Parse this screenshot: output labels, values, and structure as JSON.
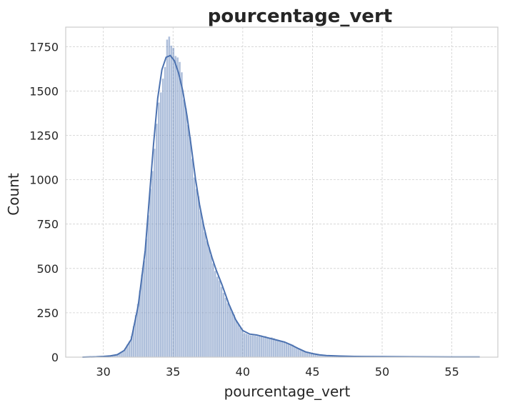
{
  "chart_data": {
    "type": "bar",
    "title": "pourcentage_vert",
    "xlabel": "pourcentage_vert",
    "ylabel": "Count",
    "xlim": [
      27.3,
      58.3
    ],
    "ylim": [
      0,
      1860
    ],
    "xticks": [
      30,
      35,
      40,
      45,
      50,
      55
    ],
    "yticks": [
      0,
      250,
      500,
      750,
      1000,
      1250,
      1500,
      1750
    ],
    "grid": true,
    "legend": "none",
    "bar_color": "#4c72b0",
    "kde_color": "#4c72b0",
    "bin_width": 0.15,
    "histogram": {
      "x_start": 30.0,
      "x_end": 57.0,
      "points": [
        [
          28.5,
          0
        ],
        [
          29.5,
          2
        ],
        [
          30.0,
          4
        ],
        [
          30.5,
          8
        ],
        [
          31.0,
          15
        ],
        [
          31.5,
          40
        ],
        [
          32.0,
          110
        ],
        [
          32.5,
          300
        ],
        [
          33.0,
          580
        ],
        [
          33.3,
          850
        ],
        [
          33.6,
          1150
        ],
        [
          33.9,
          1420
        ],
        [
          34.2,
          1600
        ],
        [
          34.5,
          1700
        ],
        [
          34.7,
          1760
        ],
        [
          35.0,
          1720
        ],
        [
          35.3,
          1660
        ],
        [
          35.6,
          1560
        ],
        [
          35.9,
          1430
        ],
        [
          36.2,
          1260
        ],
        [
          36.5,
          1060
        ],
        [
          36.8,
          890
        ],
        [
          37.1,
          760
        ],
        [
          37.4,
          660
        ],
        [
          37.7,
          580
        ],
        [
          38.0,
          500
        ],
        [
          38.5,
          400
        ],
        [
          39.0,
          300
        ],
        [
          39.5,
          210
        ],
        [
          40.0,
          145
        ],
        [
          40.5,
          128
        ],
        [
          41.0,
          125
        ],
        [
          41.5,
          118
        ],
        [
          42.0,
          110
        ],
        [
          42.5,
          100
        ],
        [
          43.0,
          92
        ],
        [
          43.5,
          72
        ],
        [
          44.0,
          50
        ],
        [
          44.5,
          30
        ],
        [
          45.0,
          20
        ],
        [
          45.5,
          14
        ],
        [
          46.0,
          10
        ],
        [
          47.0,
          7
        ],
        [
          48.0,
          5
        ],
        [
          50.0,
          4
        ],
        [
          52.0,
          2
        ],
        [
          55.0,
          1
        ],
        [
          57.0,
          1
        ]
      ]
    },
    "kde": {
      "points": [
        [
          28.5,
          0
        ],
        [
          29.5,
          2
        ],
        [
          30.0,
          4
        ],
        [
          30.5,
          7
        ],
        [
          31.0,
          14
        ],
        [
          31.5,
          38
        ],
        [
          32.0,
          100
        ],
        [
          32.5,
          290
        ],
        [
          33.0,
          600
        ],
        [
          33.3,
          900
        ],
        [
          33.6,
          1200
        ],
        [
          33.9,
          1460
        ],
        [
          34.2,
          1620
        ],
        [
          34.5,
          1690
        ],
        [
          34.8,
          1700
        ],
        [
          35.1,
          1670
        ],
        [
          35.4,
          1600
        ],
        [
          35.7,
          1500
        ],
        [
          36.0,
          1360
        ],
        [
          36.3,
          1190
        ],
        [
          36.6,
          1010
        ],
        [
          36.9,
          860
        ],
        [
          37.2,
          740
        ],
        [
          37.5,
          640
        ],
        [
          37.8,
          560
        ],
        [
          38.1,
          490
        ],
        [
          38.5,
          410
        ],
        [
          39.0,
          300
        ],
        [
          39.5,
          210
        ],
        [
          40.0,
          150
        ],
        [
          40.5,
          130
        ],
        [
          41.0,
          125
        ],
        [
          41.5,
          115
        ],
        [
          42.0,
          105
        ],
        [
          42.5,
          95
        ],
        [
          43.0,
          85
        ],
        [
          43.5,
          68
        ],
        [
          44.0,
          48
        ],
        [
          44.5,
          30
        ],
        [
          45.0,
          20
        ],
        [
          45.5,
          13
        ],
        [
          46.0,
          9
        ],
        [
          47.0,
          6
        ],
        [
          48.0,
          4
        ],
        [
          50.0,
          3
        ],
        [
          52.0,
          2
        ],
        [
          55.0,
          1
        ],
        [
          57.0,
          1
        ]
      ]
    }
  }
}
